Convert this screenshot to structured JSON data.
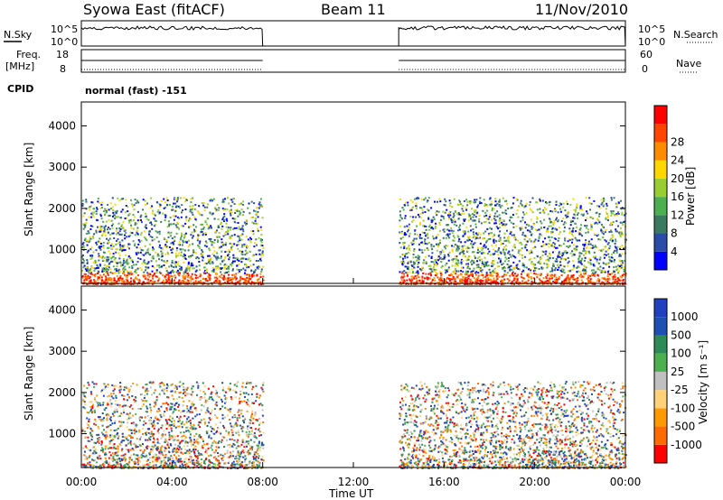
{
  "header": {
    "radar": "Syowa East (fitACF)",
    "beam": "Beam 11",
    "date": "11/Nov/2010"
  },
  "summary": {
    "nsky_label": "N.Sky",
    "nsearch_label": "N.Search",
    "freq_label_1": "Freq.",
    "freq_label_2": "[MHz]",
    "nave_label": "Nave",
    "cpid_label": "CPID",
    "cpid_value": "normal (fast) -151",
    "noise_ticks": [
      "10^5",
      "10^0"
    ],
    "freq_ticks": [
      "18",
      "8"
    ],
    "nave_ticks": [
      "60",
      "0"
    ]
  },
  "colors": {
    "power_scale": [
      "#0000ff",
      "#2a4ba8",
      "#3a7a60",
      "#4caf50",
      "#9acd32",
      "#ffd700",
      "#ff8c00",
      "#ff4500",
      "#ff0000"
    ],
    "velocity_scale": [
      "#ff0000",
      "#ff6a00",
      "#ff9900",
      "#ffd27a",
      "#c0c0c0",
      "#4caf50",
      "#2e8b57",
      "#1e50b4",
      "#2040c0"
    ]
  },
  "chart_data": [
    {
      "type": "heatmap",
      "panel": "power",
      "xlabel": "",
      "ylabel": "Slant Range [km]",
      "x_range": [
        "00:00",
        "24:00"
      ],
      "ylim": [
        180,
        4580
      ],
      "y_ticks": [
        "1000",
        "2000",
        "3000",
        "4000"
      ],
      "x_ticks": [
        "00:00",
        "04:00",
        "08:00",
        "12:00",
        "16:00",
        "20:00",
        "00:00"
      ],
      "colorbar_label": "Power [dB]",
      "colorbar_ticks": [
        "4",
        "8",
        "12",
        "16",
        "20",
        "24",
        "28"
      ],
      "data_gaps": [
        [
          "08:00",
          "14:00"
        ]
      ],
      "observed_intervals": [
        [
          "00:00",
          "08:00"
        ],
        [
          "14:00",
          "24:00"
        ]
      ]
    },
    {
      "type": "heatmap",
      "panel": "velocity",
      "xlabel": "Time UT",
      "ylabel": "Slant Range [km]",
      "x_range": [
        "00:00",
        "24:00"
      ],
      "ylim": [
        180,
        4580
      ],
      "y_ticks": [
        "1000",
        "2000",
        "3000",
        "4000"
      ],
      "x_ticks": [
        "00:00",
        "04:00",
        "08:00",
        "12:00",
        "16:00",
        "20:00",
        "00:00"
      ],
      "colorbar_label": "Velocity [m s⁻¹]",
      "colorbar_ticks": [
        "1000",
        "500",
        "100",
        "25",
        "-25",
        "-100",
        "-500",
        "-1000"
      ],
      "data_gaps": [
        [
          "08:00",
          "14:00"
        ]
      ],
      "observed_intervals": [
        [
          "00:00",
          "08:00"
        ],
        [
          "14:00",
          "24:00"
        ]
      ]
    }
  ]
}
